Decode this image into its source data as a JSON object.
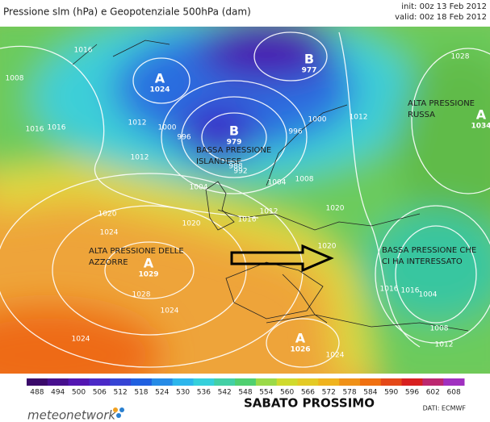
{
  "header": {
    "title": "Pressione slm (hPa) e Geopotenziale 500hPa (dam)",
    "init": "init: 00z 13 Feb 2012",
    "valid": "valid: 00z 18 Feb 2012"
  },
  "map": {
    "centers": [
      {
        "letter": "A",
        "value": "1024"
      },
      {
        "letter": "B",
        "value": "977"
      },
      {
        "letter": "B",
        "value": "979"
      },
      {
        "letter": "A",
        "value": "1034"
      },
      {
        "letter": "A",
        "value": "1029"
      },
      {
        "letter": "A",
        "value": "1026"
      }
    ],
    "regions": [
      {
        "lines": [
          "ALTA PRESSIONE",
          "RUSSA"
        ]
      },
      {
        "lines": [
          "BASSA PRESSIONE",
          "ISLANDESE"
        ]
      },
      {
        "lines": [
          "ALTA PRESSIONE DELLE",
          "AZZORRE"
        ]
      },
      {
        "lines": [
          "BASSA PRESSIONE CHE",
          "CI HA INTERESSATO"
        ]
      }
    ],
    "isobars": [
      "1008",
      "1016",
      "1016",
      "1016",
      "1012",
      "1000",
      "996",
      "1012",
      "1004",
      "992",
      "988",
      "1004",
      "996",
      "1000",
      "1008",
      "1012",
      "1020",
      "1016",
      "1012",
      "1020",
      "1024",
      "1028",
      "1020",
      "1024",
      "1028",
      "1016",
      "1016",
      "1004",
      "1008",
      "1012",
      "1024",
      "1024",
      "1020"
    ]
  },
  "colorbar": {
    "ticks": [
      488,
      494,
      500,
      506,
      512,
      518,
      524,
      530,
      536,
      542,
      548,
      554,
      560,
      566,
      572,
      578,
      584,
      590,
      596,
      602,
      608
    ]
  },
  "footer": {
    "title": "SABATO PROSSIMO",
    "source": "DATI: ECMWF",
    "brand": "meteonetwork"
  }
}
